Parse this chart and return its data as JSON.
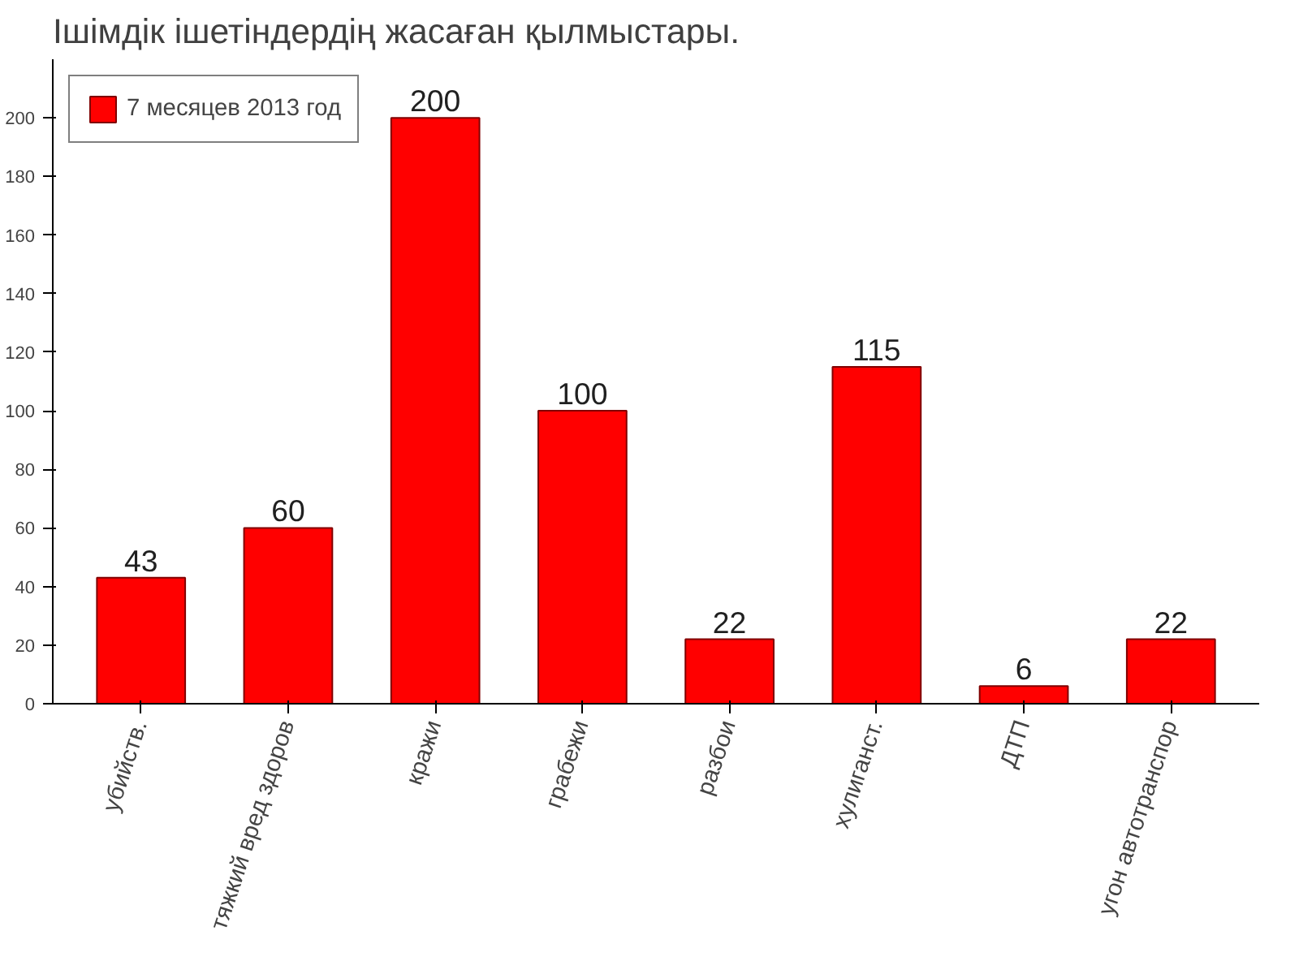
{
  "chart_data": {
    "type": "bar",
    "title": "Ішімдік ішетіндердің жасаған қылмыстары.",
    "categories": [
      "убийств.",
      "тяжкий вред здоров",
      "кражи",
      "грабежи",
      "разбои",
      "хулиганст.",
      "ДТП",
      "угон автотранспор"
    ],
    "series": [
      {
        "name": "7 месяцев 2013 год",
        "color": "#ff0000",
        "values": [
          43,
          60,
          200,
          100,
          22,
          115,
          6,
          22
        ]
      }
    ],
    "ylim": [
      0,
      220
    ],
    "yticks": [
      0,
      20,
      40,
      60,
      80,
      100,
      120,
      140,
      160,
      180,
      200
    ],
    "data_labels": true,
    "legend": "top left",
    "grid": false
  }
}
